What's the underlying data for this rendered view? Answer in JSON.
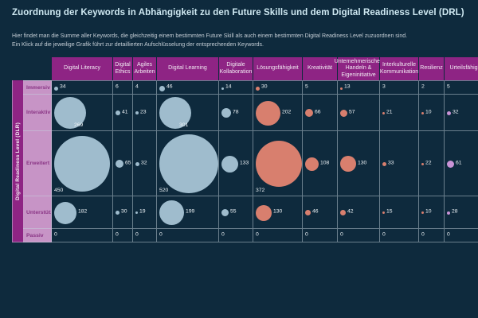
{
  "title": "Zuordnung der Keywords in Abhängigkeit zu den Future Skills und dem Digital Readiness Level (DRL)",
  "subtitle": {
    "line1": "Hier findet man die Summe aller Keywords, die gleichzeitig einem bestimmten Future Skill als auch einem bestimmten Digital Readiness Level zuzuordnen sind.",
    "line2": "Ein Klick auf die jeweilige Grafik führt zur detaillierten Aufschlüsselung der entsprechenden Keywords."
  },
  "axis": {
    "label": "Digital Readiness Level (DLR)"
  },
  "colors": {
    "background": "#0e2a3d",
    "title_text": "#cfe9f2",
    "header_bg": "#8e2484",
    "axis_strip_bg": "#8e2484",
    "row_label_bg": "#c794c6",
    "row_label_text": "#8a3585",
    "grid_line": "rgba(197,211,221,0.5)",
    "bubble_blue": "#9fbccd",
    "bubble_salmon": "#d87f6e",
    "bubble_orchid": "#c993d6",
    "value_text": "#eef3f6"
  },
  "chart_data": {
    "type": "bubble-matrix",
    "title": "Zuordnung der Keywords in Abhängigkeit zu den Future Skills und dem Digital Readiness Level (DRL)",
    "x_dimension": "Future Skills",
    "y_dimension": "Digital Readiness Level (DLR)",
    "columns": [
      "Digital Literacy",
      "Digital Ethics",
      "Agiles Arbeiten",
      "Digital Learning",
      "Digitale Kollaboration",
      "Lösungsfähigkeit",
      "Kreativität",
      "Unternehmerisches Handeln & Eigeninitiative",
      "Interkulturelle Kommunikation",
      "Resilienz",
      "Urteilsfähigkeit"
    ],
    "rows": [
      "Immersiv",
      "Interaktiv",
      "Erweitert",
      "Unterstützend",
      "Passiv"
    ],
    "values": [
      [
        34,
        6,
        4,
        46,
        14,
        30,
        5,
        13,
        3,
        2,
        5
      ],
      [
        269,
        41,
        23,
        301,
        78,
        202,
        66,
        57,
        21,
        10,
        32
      ],
      [
        450,
        65,
        32,
        520,
        133,
        372,
        108,
        130,
        33,
        22,
        61
      ],
      [
        182,
        30,
        19,
        199,
        55,
        130,
        46,
        42,
        15,
        10,
        28
      ],
      [
        0,
        0,
        0,
        0,
        0,
        0,
        0,
        0,
        0,
        0,
        0
      ]
    ],
    "column_colors": [
      "#9fbccd",
      "#9fbccd",
      "#9fbccd",
      "#9fbccd",
      "#9fbccd",
      "#d87f6e",
      "#d87f6e",
      "#d87f6e",
      "#d87f6e",
      "#d87f6e",
      "#c993d6"
    ],
    "legend": "Bubbles sized by keyword count; cells with values below 10 show number only; clicking a cell opens a detailed keyword breakdown"
  }
}
